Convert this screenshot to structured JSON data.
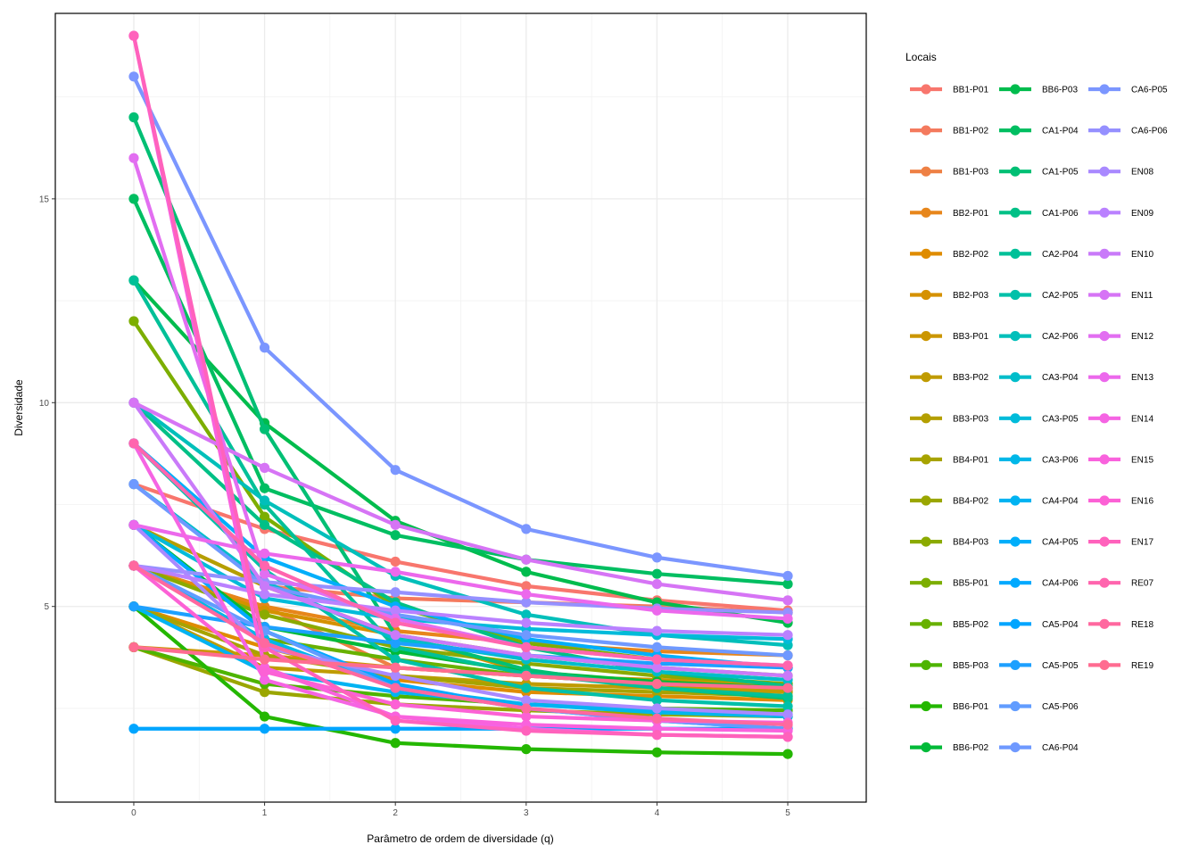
{
  "chart_data": {
    "type": "line",
    "xlabel": "Parâmetro de ordem de diversidade (q)",
    "ylabel": "Diversidade",
    "x": [
      0,
      1,
      2,
      3,
      4,
      5
    ],
    "x_ticks": [
      "0",
      "1",
      "2",
      "3",
      "4",
      "5"
    ],
    "y_ticks": [
      "5",
      "10",
      "15"
    ],
    "xlim": [
      -0.6,
      5.6
    ],
    "ylim": [
      0.2,
      19.55
    ],
    "grid": true,
    "legend": {
      "title": "Locais",
      "placement": "right",
      "columns": 3
    },
    "series": [
      {
        "name": "BB1-P01",
        "color": "#F8766D",
        "values": [
          8,
          6.9,
          6.1,
          5.5,
          5.15,
          4.9
        ]
      },
      {
        "name": "BB1-P02",
        "color": "#F47A5E",
        "values": [
          7,
          5.5,
          5.2,
          5.1,
          5.0,
          4.85
        ]
      },
      {
        "name": "BB1-P03",
        "color": "#EE8044",
        "values": [
          6,
          5.0,
          3.5,
          3.3,
          3.1,
          2.95
        ]
      },
      {
        "name": "BB2-P01",
        "color": "#E7861B",
        "values": [
          6,
          5.0,
          4.4,
          4.1,
          3.9,
          3.8
        ]
      },
      {
        "name": "BB2-P02",
        "color": "#DF8C00",
        "values": [
          5,
          4.0,
          3.2,
          2.9,
          2.8,
          2.7
        ]
      },
      {
        "name": "BB2-P03",
        "color": "#D59100",
        "values": [
          6,
          4.9,
          4.3,
          3.4,
          3.1,
          2.9
        ]
      },
      {
        "name": "BB3-P01",
        "color": "#CB9600",
        "values": [
          4,
          3.8,
          3.5,
          3.3,
          3.2,
          3.1
        ]
      },
      {
        "name": "BB3-P02",
        "color": "#C09B00",
        "values": [
          5,
          3.5,
          3.3,
          3.1,
          3.0,
          2.9
        ]
      },
      {
        "name": "BB3-P03",
        "color": "#B49F00",
        "values": [
          7,
          5.5,
          4.3,
          3.8,
          3.5,
          3.3
        ]
      },
      {
        "name": "BB4-P01",
        "color": "#A7A300",
        "values": [
          5,
          3.8,
          3.3,
          3.0,
          2.9,
          2.8
        ]
      },
      {
        "name": "BB4-P02",
        "color": "#9AA600",
        "values": [
          4,
          2.9,
          2.6,
          2.45,
          2.35,
          2.3
        ]
      },
      {
        "name": "BB4-P03",
        "color": "#8BAA00",
        "values": [
          6,
          4.8,
          4.0,
          3.6,
          3.3,
          3.1
        ]
      },
      {
        "name": "BB5-P01",
        "color": "#7CAE00",
        "values": [
          12,
          7.2,
          5.0,
          4.1,
          3.7,
          3.5
        ]
      },
      {
        "name": "BB5-P02",
        "color": "#68B100",
        "values": [
          6,
          4.2,
          3.7,
          3.3,
          3.1,
          3.0
        ]
      },
      {
        "name": "BB5-P03",
        "color": "#4EB400",
        "values": [
          4,
          3.1,
          2.8,
          2.6,
          2.5,
          2.45
        ]
      },
      {
        "name": "BB6-P01",
        "color": "#24B700",
        "values": [
          5,
          2.3,
          1.65,
          1.5,
          1.42,
          1.38
        ]
      },
      {
        "name": "BB6-P02",
        "color": "#00BA38",
        "values": [
          7,
          4.5,
          3.9,
          3.4,
          3.15,
          3.0
        ]
      },
      {
        "name": "BB6-P03",
        "color": "#00BC4D",
        "values": [
          13,
          9.5,
          7.1,
          5.85,
          5.1,
          4.6
        ]
      },
      {
        "name": "CA1-P04",
        "color": "#00BE61",
        "values": [
          15,
          7.9,
          6.75,
          6.15,
          5.8,
          5.55
        ]
      },
      {
        "name": "CA1-P05",
        "color": "#00BF74",
        "values": [
          17,
          9.35,
          4.3,
          3.45,
          3.0,
          2.75
        ]
      },
      {
        "name": "CA1-P06",
        "color": "#00C086",
        "values": [
          10,
          7.0,
          5.1,
          4.0,
          3.4,
          3.05
        ]
      },
      {
        "name": "CA2-P04",
        "color": "#00C098",
        "values": [
          13,
          7.5,
          4.0,
          3.35,
          3.0,
          2.8
        ]
      },
      {
        "name": "CA2-P05",
        "color": "#00C0A9",
        "values": [
          9,
          5.9,
          3.7,
          3.0,
          2.7,
          2.55
        ]
      },
      {
        "name": "CA2-P06",
        "color": "#00BFBA",
        "values": [
          10,
          7.6,
          5.75,
          4.8,
          4.3,
          4.05
        ]
      },
      {
        "name": "CA3-P04",
        "color": "#00BDCA",
        "values": [
          8,
          5.6,
          4.2,
          3.7,
          3.4,
          3.2
        ]
      },
      {
        "name": "CA3-P05",
        "color": "#00BBDA",
        "values": [
          7,
          5.2,
          4.7,
          4.45,
          4.3,
          4.2
        ]
      },
      {
        "name": "CA3-P06",
        "color": "#00B7E8",
        "values": [
          6,
          4.2,
          3.0,
          2.6,
          2.4,
          2.3
        ]
      },
      {
        "name": "CA4-P04",
        "color": "#00B3F2",
        "values": [
          5,
          3.4,
          2.9,
          2.6,
          2.45,
          2.35
        ]
      },
      {
        "name": "CA4-P05",
        "color": "#00AEFA",
        "values": [
          9,
          6.2,
          5.0,
          4.2,
          3.8,
          3.5
        ]
      },
      {
        "name": "CA4-P06",
        "color": "#00A9FF",
        "values": [
          7,
          4.4,
          3.1,
          2.5,
          2.2,
          2.0
        ]
      },
      {
        "name": "CA5-P04",
        "color": "#00A5FF",
        "values": [
          2,
          2.0,
          2.0,
          2.0,
          2.0,
          2.0
        ]
      },
      {
        "name": "CA5-P05",
        "color": "#1DA0FF",
        "values": [
          5,
          4.5,
          4.1,
          3.8,
          3.6,
          3.5
        ]
      },
      {
        "name": "CA5-P06",
        "color": "#619CFF",
        "values": [
          6,
          4.4,
          3.0,
          2.5,
          2.2,
          2.0
        ]
      },
      {
        "name": "CA6-P04",
        "color": "#6F99FF",
        "values": [
          8,
          5.5,
          4.8,
          4.3,
          4.0,
          3.8
        ]
      },
      {
        "name": "CA6-P05",
        "color": "#7B96FF",
        "values": [
          18,
          11.35,
          8.35,
          6.9,
          6.2,
          5.75
        ]
      },
      {
        "name": "CA6-P06",
        "color": "#9590FF",
        "values": [
          6,
          5.6,
          5.35,
          5.1,
          4.95,
          4.85
        ]
      },
      {
        "name": "EN08",
        "color": "#A989FF",
        "values": [
          7,
          4.0,
          3.3,
          2.7,
          2.5,
          2.35
        ]
      },
      {
        "name": "EN09",
        "color": "#BA81FF",
        "values": [
          6,
          5.3,
          4.9,
          4.6,
          4.4,
          4.3
        ]
      },
      {
        "name": "EN10",
        "color": "#C97AF9",
        "values": [
          10,
          5.5,
          4.3,
          3.8,
          3.5,
          3.3
        ]
      },
      {
        "name": "EN11",
        "color": "#D674F5",
        "values": [
          10,
          8.4,
          7.0,
          6.15,
          5.55,
          5.15
        ]
      },
      {
        "name": "EN12",
        "color": "#E26EF1",
        "values": [
          16,
          5.8,
          4.7,
          4.0,
          3.7,
          3.55
        ]
      },
      {
        "name": "EN13",
        "color": "#EC68EC",
        "values": [
          7,
          6.3,
          5.85,
          5.3,
          4.9,
          4.7
        ]
      },
      {
        "name": "EN14",
        "color": "#F564E3",
        "values": [
          9,
          3.2,
          2.3,
          2.0,
          1.85,
          1.8
        ]
      },
      {
        "name": "EN15",
        "color": "#F962DD",
        "values": [
          19,
          3.5,
          2.3,
          2.1,
          2.0,
          1.95
        ]
      },
      {
        "name": "EN16",
        "color": "#FC61D5",
        "values": [
          6,
          3.4,
          2.6,
          2.3,
          2.2,
          2.15
        ]
      },
      {
        "name": "EN17",
        "color": "#FF62BC",
        "values": [
          19,
          4.0,
          2.2,
          1.95,
          1.85,
          1.8
        ]
      },
      {
        "name": "RE07",
        "color": "#FF65AE",
        "values": [
          9,
          6.0,
          4.6,
          4.0,
          3.7,
          3.55
        ]
      },
      {
        "name": "RE18",
        "color": "#FF689F",
        "values": [
          6,
          4.1,
          3.0,
          2.5,
          2.25,
          2.1
        ]
      },
      {
        "name": "RE19",
        "color": "#FF6C91",
        "values": [
          4,
          3.7,
          3.5,
          3.3,
          3.1,
          3.0
        ]
      }
    ]
  }
}
